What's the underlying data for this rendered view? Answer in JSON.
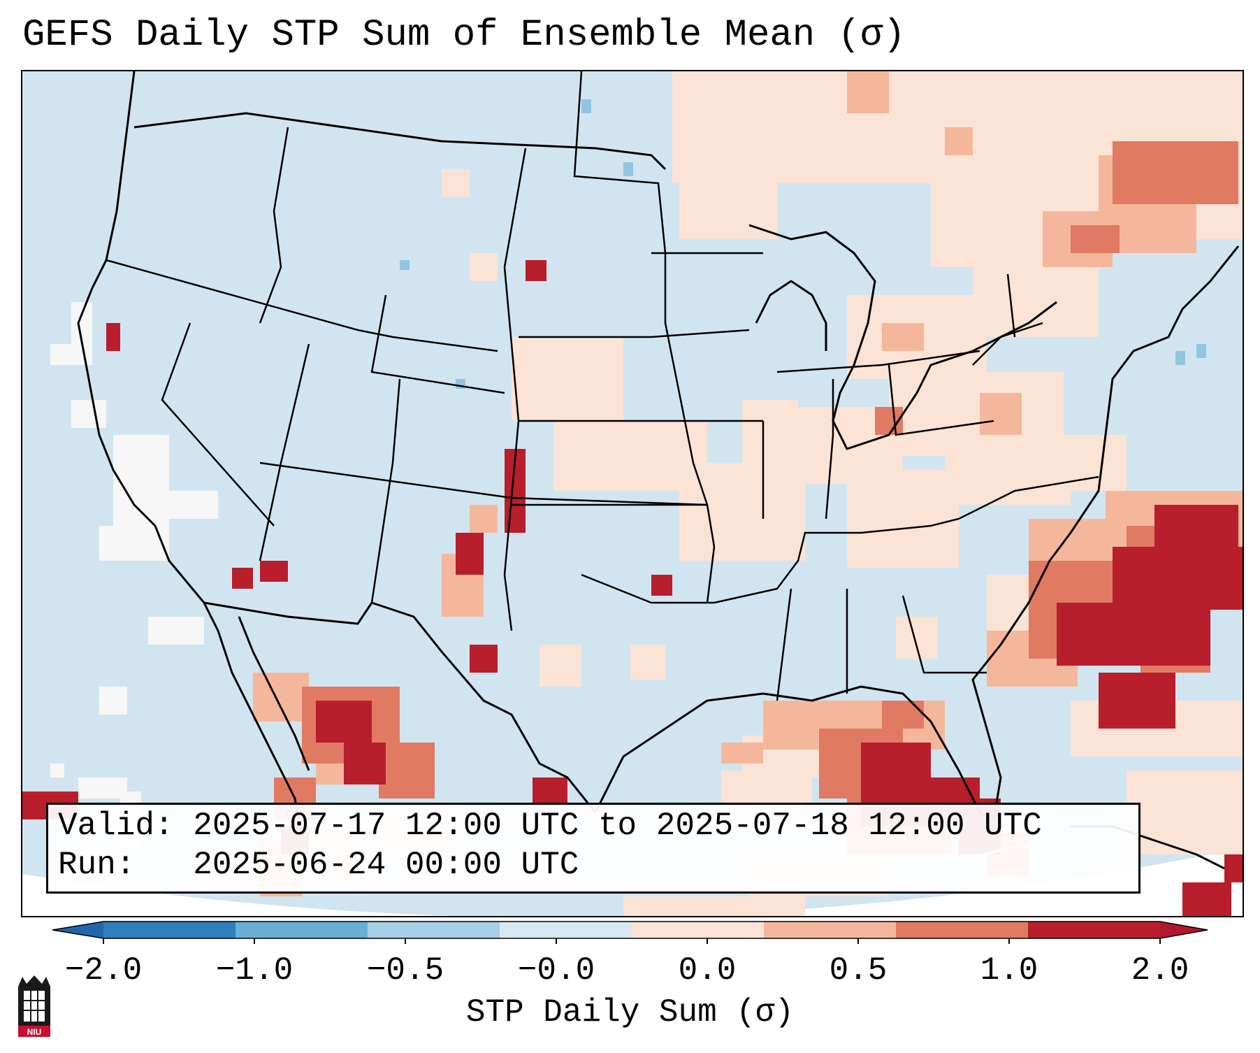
{
  "title": "GEFS Daily STP Sum of Ensemble Mean (σ)",
  "info": {
    "valid_label": "Valid:",
    "valid_value": "2025-07-17 12:00 UTC to 2025-07-18 12:00 UTC",
    "run_label": "Run:",
    "run_value": "2025-06-24 00:00 UTC"
  },
  "colorbar": {
    "label": "STP Daily Sum (σ)",
    "ticks": [
      "−2.0",
      "−1.0",
      "−0.5",
      "−0.0",
      "0.0",
      "0.5",
      "1.0",
      "2.0"
    ],
    "segment_colors": [
      "#2f7fbd",
      "#6aaed6",
      "#a7cfe6",
      "#d8e8f1",
      "#fbe3d6",
      "#f5b79b",
      "#e07a63",
      "#b81e2c"
    ],
    "under_color": "#2166ac",
    "over_color": "#b2182b"
  },
  "map": {
    "background_color": "#d1e5f0",
    "land_border_color": "#000000",
    "regions": "Continental United States, southern Canada, northern Mexico, Gulf of Mexico, Caribbean"
  },
  "logo": {
    "text": "NIU"
  }
}
